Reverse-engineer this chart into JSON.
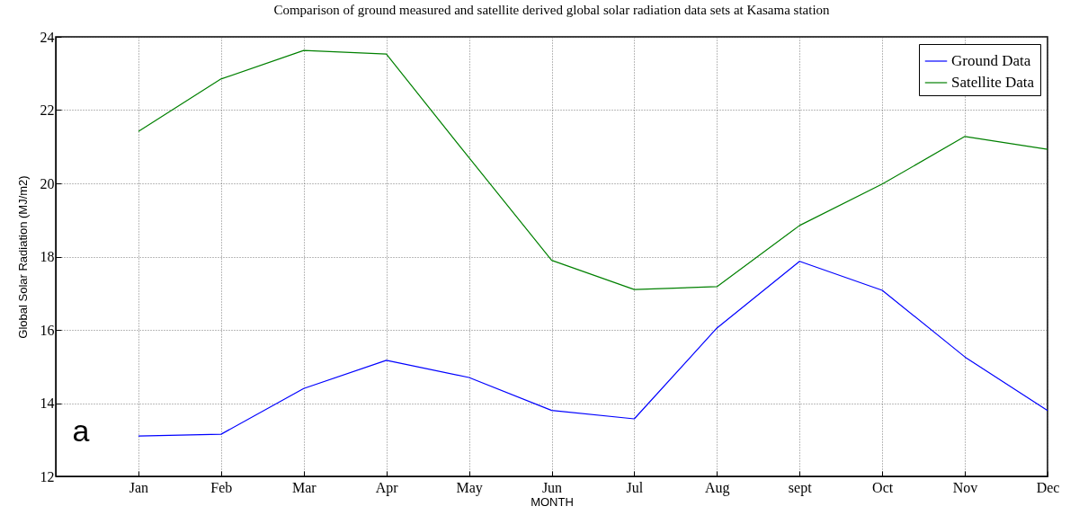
{
  "chart_data": {
    "type": "line",
    "title": "Comparison of ground measured and satellite derived global solar radiation data sets at Kasama station",
    "xlabel": "MONTH",
    "ylabel": "Global Solar Radiation (MJ/m2)",
    "categories": [
      null,
      "Jan",
      "Feb",
      "Mar",
      "Apr",
      "May",
      "Jun",
      "Jul",
      "Aug",
      "sept",
      "Oct",
      "Nov",
      "Dec"
    ],
    "ylim": [
      12,
      24
    ],
    "yticks": [
      12,
      14,
      16,
      18,
      20,
      22,
      24
    ],
    "series": [
      {
        "name": "Ground Data",
        "color": "#0000ff",
        "values": [
          null,
          13.1,
          13.15,
          14.4,
          15.17,
          14.7,
          13.8,
          13.57,
          16.05,
          17.87,
          17.08,
          15.26,
          13.8
        ]
      },
      {
        "name": "Satellite Data",
        "color": "#008000",
        "values": [
          null,
          21.42,
          22.85,
          23.63,
          23.53,
          20.7,
          17.9,
          17.1,
          17.18,
          18.85,
          19.98,
          21.28,
          20.93
        ]
      }
    ],
    "grid": true,
    "legend": "top right",
    "annotations": [
      "a"
    ]
  }
}
